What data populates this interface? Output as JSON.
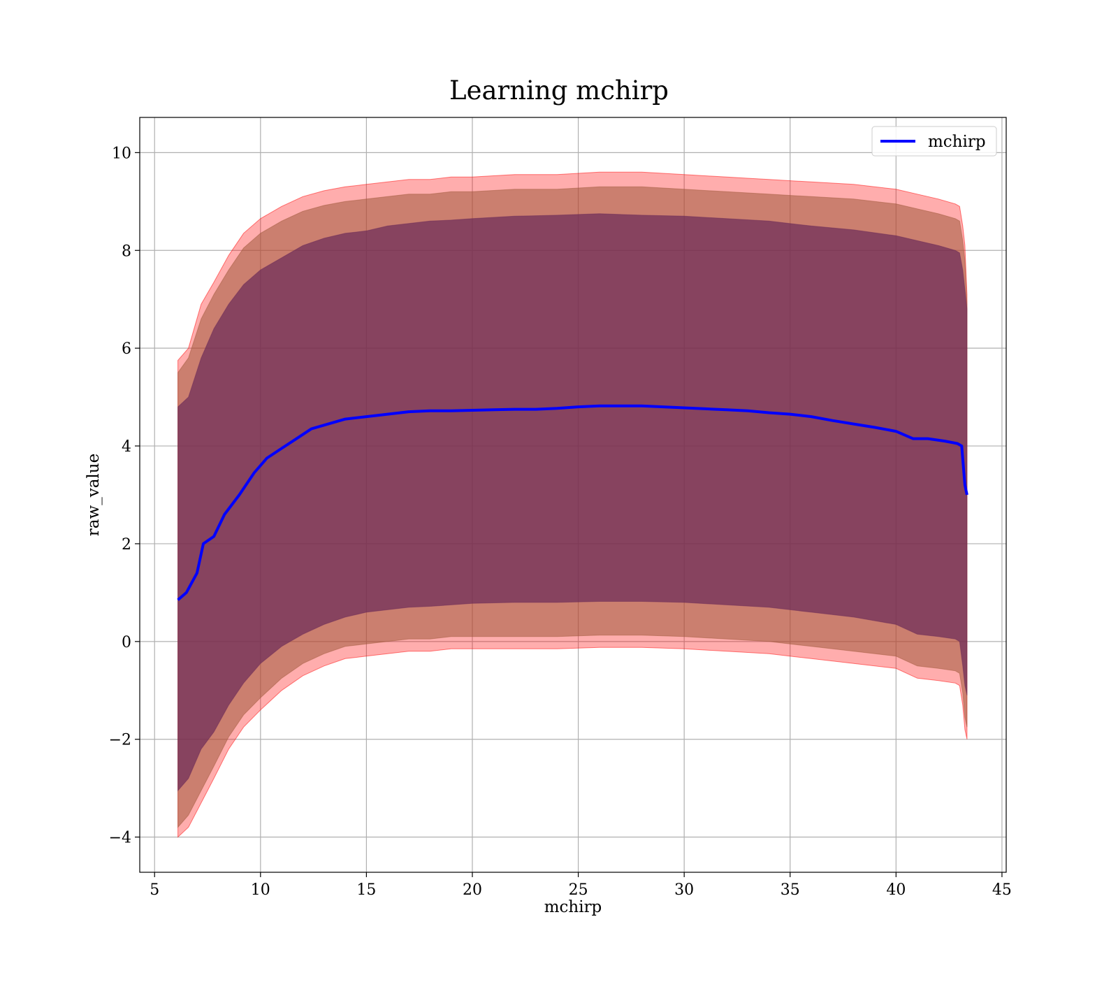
{
  "chart_data": {
    "type": "line",
    "title": "Learning mchirp",
    "xlabel": "mchirp",
    "ylabel": "raw_value",
    "xlim": [
      4.3,
      45.2
    ],
    "ylim": [
      -4.72,
      10.72
    ],
    "xticks": [
      5,
      10,
      15,
      20,
      25,
      30,
      35,
      40,
      45
    ],
    "yticks": [
      -4,
      -2,
      0,
      2,
      4,
      6,
      8,
      10
    ],
    "xtick_labels": [
      "5",
      "10",
      "15",
      "20",
      "25",
      "30",
      "35",
      "40",
      "45"
    ],
    "ytick_labels": [
      "−4",
      "−2",
      "0",
      "2",
      "4",
      "6",
      "8",
      "10"
    ],
    "grid": true,
    "legend": {
      "position": "top-right",
      "entries": [
        "mchirp"
      ]
    },
    "colors": {
      "line": "#0000ff",
      "band_outer": "#ff0000",
      "band_mid": "#a05a3c",
      "band_inner": "#6a2a58"
    },
    "series": [
      {
        "name": "mchirp",
        "kind": "line",
        "x": [
          6.1,
          6.5,
          7.0,
          7.3,
          7.8,
          8.3,
          9.0,
          9.7,
          10.3,
          11.0,
          11.7,
          12.4,
          13.2,
          14.0,
          15.0,
          16.0,
          17.0,
          18.0,
          19.0,
          20.0,
          21.0,
          22.0,
          23.0,
          24.0,
          25.0,
          26.0,
          27.0,
          28.0,
          29.0,
          30.0,
          31.0,
          32.0,
          33.0,
          34.0,
          35.0,
          36.0,
          37.0,
          38.0,
          39.0,
          40.0,
          40.8,
          41.5,
          42.3,
          42.9,
          43.1,
          43.25,
          43.35
        ],
        "y": [
          0.85,
          1.0,
          1.4,
          2.0,
          2.15,
          2.6,
          3.0,
          3.45,
          3.75,
          3.95,
          4.15,
          4.35,
          4.45,
          4.55,
          4.6,
          4.65,
          4.7,
          4.72,
          4.72,
          4.73,
          4.74,
          4.75,
          4.75,
          4.77,
          4.8,
          4.82,
          4.82,
          4.82,
          4.8,
          4.78,
          4.76,
          4.74,
          4.72,
          4.68,
          4.65,
          4.6,
          4.52,
          4.45,
          4.38,
          4.3,
          4.15,
          4.15,
          4.1,
          4.05,
          4.0,
          3.2,
          3.0
        ]
      },
      {
        "name": "",
        "kind": "band",
        "x": [
          6.1,
          6.6,
          7.2,
          7.8,
          8.5,
          9.2,
          10.0,
          11.0,
          12.0,
          13.0,
          14.0,
          15.0,
          16.0,
          17.0,
          18.0,
          19.0,
          20.0,
          22.0,
          24.0,
          26.0,
          28.0,
          30.0,
          32.0,
          34.0,
          36.0,
          38.0,
          40.0,
          41.0,
          42.0,
          42.8,
          43.0,
          43.15,
          43.25,
          43.35
        ],
        "upper": [
          5.75,
          6.0,
          6.9,
          7.35,
          7.9,
          8.35,
          8.65,
          8.9,
          9.1,
          9.22,
          9.3,
          9.35,
          9.4,
          9.45,
          9.45,
          9.5,
          9.5,
          9.55,
          9.55,
          9.6,
          9.6,
          9.55,
          9.5,
          9.45,
          9.4,
          9.35,
          9.25,
          9.15,
          9.05,
          8.95,
          8.9,
          8.5,
          8.1,
          7.1
        ],
        "lower": [
          -4.0,
          -3.8,
          -3.3,
          -2.8,
          -2.2,
          -1.75,
          -1.4,
          -1.0,
          -0.7,
          -0.5,
          -0.35,
          -0.3,
          -0.25,
          -0.2,
          -0.2,
          -0.15,
          -0.15,
          -0.15,
          -0.15,
          -0.12,
          -0.12,
          -0.15,
          -0.2,
          -0.25,
          -0.35,
          -0.45,
          -0.55,
          -0.75,
          -0.8,
          -0.85,
          -0.9,
          -1.3,
          -1.8,
          -2.0
        ]
      },
      {
        "name": "",
        "kind": "band",
        "x": [
          6.1,
          6.6,
          7.2,
          7.8,
          8.5,
          9.2,
          10.0,
          11.0,
          12.0,
          13.0,
          14.0,
          15.0,
          16.0,
          17.0,
          18.0,
          19.0,
          20.0,
          22.0,
          24.0,
          26.0,
          28.0,
          30.0,
          32.0,
          34.0,
          36.0,
          38.0,
          40.0,
          41.0,
          42.0,
          42.8,
          43.0,
          43.15,
          43.25,
          43.35
        ],
        "upper": [
          5.5,
          5.8,
          6.6,
          7.1,
          7.6,
          8.05,
          8.35,
          8.6,
          8.8,
          8.92,
          9.0,
          9.05,
          9.1,
          9.15,
          9.15,
          9.2,
          9.2,
          9.25,
          9.25,
          9.3,
          9.3,
          9.25,
          9.2,
          9.15,
          9.1,
          9.05,
          8.95,
          8.85,
          8.75,
          8.65,
          8.6,
          8.2,
          7.8,
          6.9
        ],
        "lower": [
          -3.8,
          -3.55,
          -3.05,
          -2.55,
          -1.95,
          -1.5,
          -1.15,
          -0.75,
          -0.45,
          -0.25,
          -0.1,
          -0.05,
          0.0,
          0.05,
          0.05,
          0.1,
          0.1,
          0.1,
          0.1,
          0.13,
          0.13,
          0.1,
          0.05,
          0.0,
          -0.1,
          -0.2,
          -0.3,
          -0.5,
          -0.55,
          -0.6,
          -0.65,
          -1.05,
          -1.55,
          -1.75
        ]
      },
      {
        "name": "",
        "kind": "band",
        "x": [
          6.1,
          6.6,
          7.2,
          7.8,
          8.5,
          9.2,
          10.0,
          11.0,
          12.0,
          13.0,
          14.0,
          15.0,
          16.0,
          17.0,
          18.0,
          19.0,
          20.0,
          22.0,
          24.0,
          26.0,
          28.0,
          30.0,
          32.0,
          34.0,
          36.0,
          38.0,
          40.0,
          41.0,
          42.0,
          42.8,
          43.0,
          43.15,
          43.25,
          43.35
        ],
        "upper": [
          4.8,
          5.0,
          5.8,
          6.4,
          6.9,
          7.3,
          7.6,
          7.85,
          8.1,
          8.25,
          8.35,
          8.4,
          8.5,
          8.55,
          8.6,
          8.62,
          8.65,
          8.7,
          8.72,
          8.75,
          8.72,
          8.7,
          8.65,
          8.6,
          8.5,
          8.42,
          8.3,
          8.2,
          8.1,
          8.0,
          7.95,
          7.6,
          7.2,
          6.8
        ],
        "lower": [
          -3.05,
          -2.8,
          -2.2,
          -1.85,
          -1.3,
          -0.85,
          -0.45,
          -0.1,
          0.15,
          0.35,
          0.5,
          0.6,
          0.65,
          0.7,
          0.72,
          0.75,
          0.78,
          0.8,
          0.8,
          0.82,
          0.82,
          0.8,
          0.75,
          0.7,
          0.6,
          0.5,
          0.35,
          0.15,
          0.1,
          0.05,
          0.0,
          -0.5,
          -0.9,
          -1.1
        ]
      }
    ]
  }
}
